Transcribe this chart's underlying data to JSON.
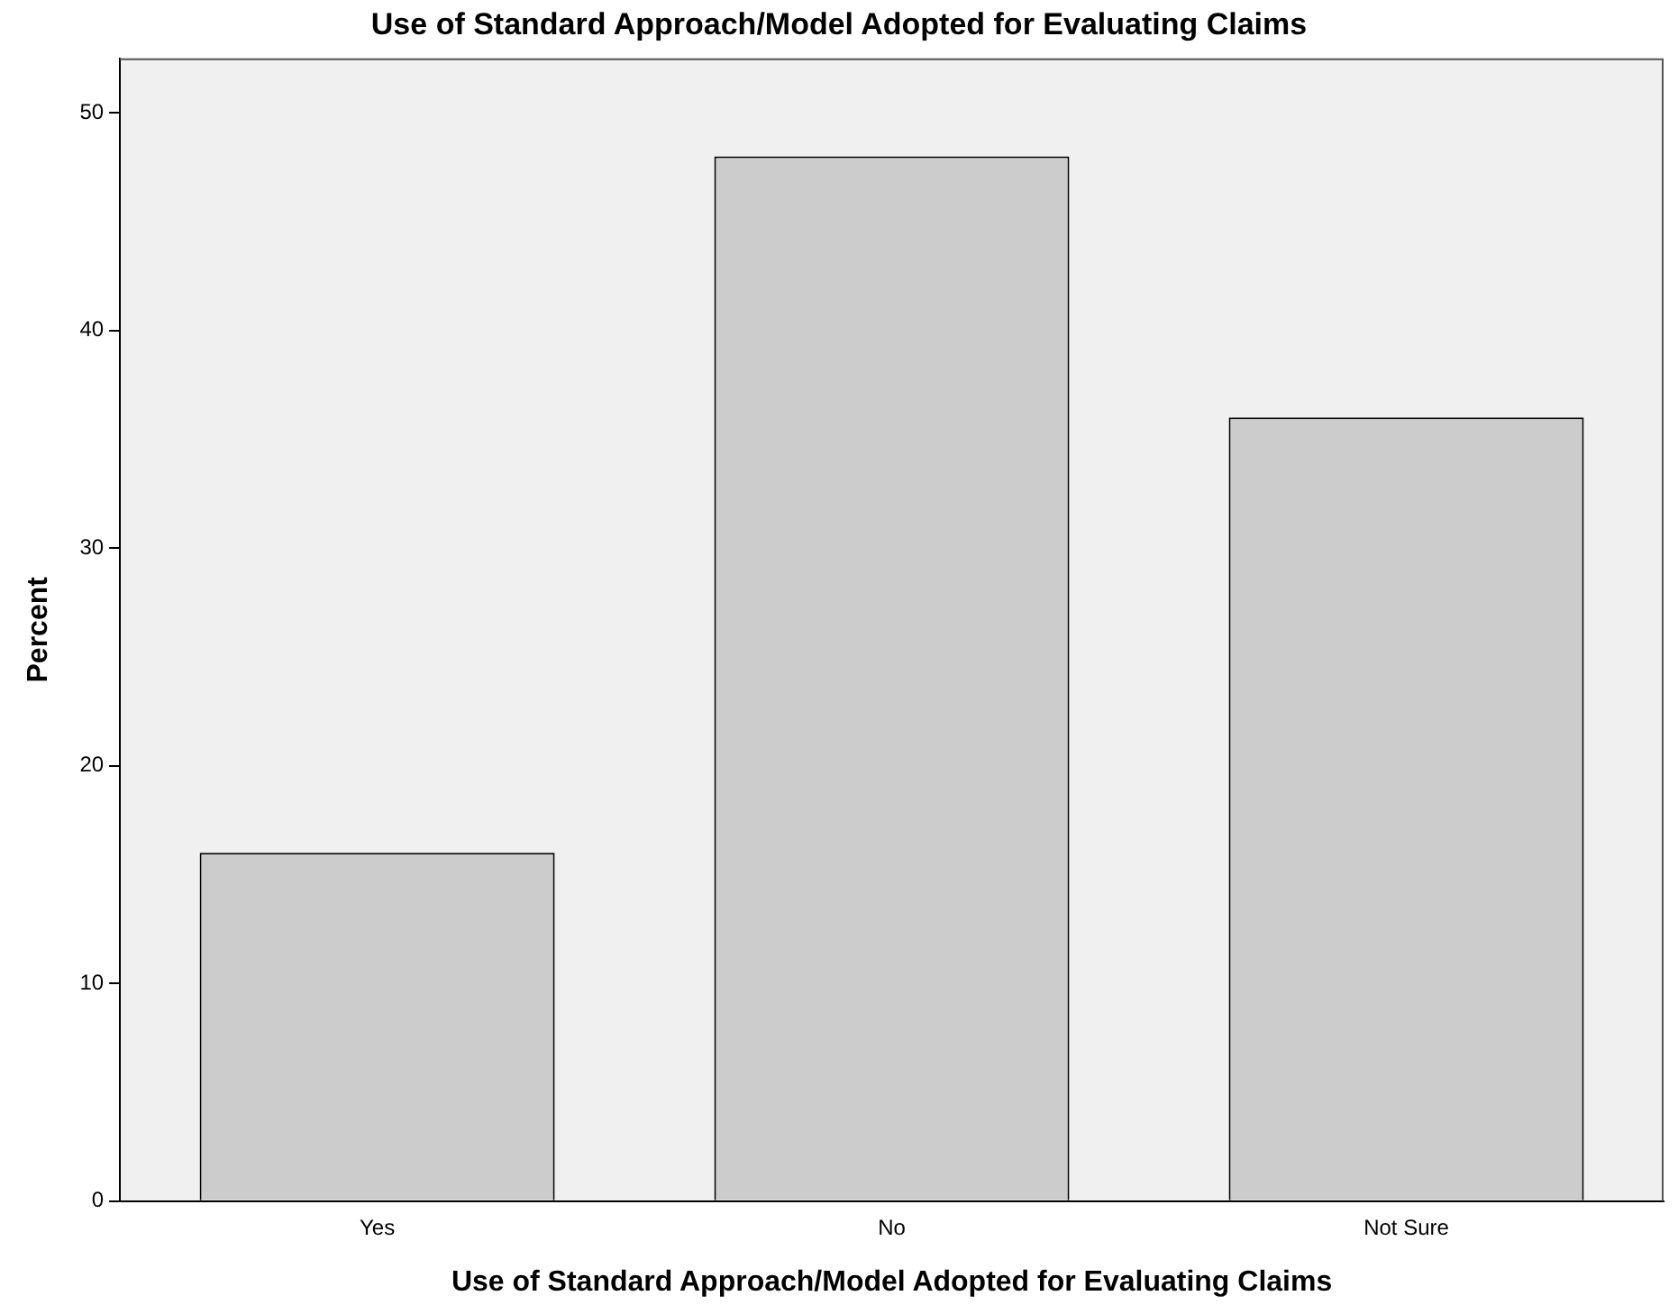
{
  "chart_data": {
    "type": "bar",
    "title": "Use of Standard Approach/Model Adopted for Evaluating Claims",
    "xlabel": "Use of Standard Approach/Model Adopted for Evaluating Claims",
    "ylabel": "Percent",
    "categories": [
      "Yes",
      "No",
      "Not Sure"
    ],
    "values": [
      16,
      48,
      36
    ],
    "color": "#cccccc",
    "ylim": [
      0,
      52.5
    ],
    "yticks": [
      0,
      10,
      20,
      30,
      40,
      50
    ],
    "grid": false,
    "legend": false
  }
}
